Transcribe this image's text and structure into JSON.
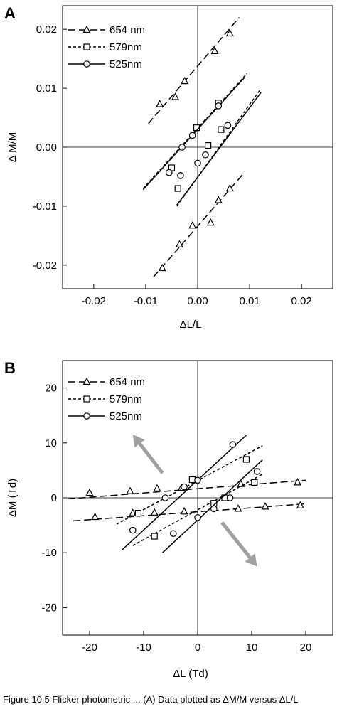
{
  "caption": "Figure 10.5 Flicker photometric ... (A) Data plotted as ΔM/M versus ΔL/L",
  "chart_data": [
    {
      "panel": "A",
      "type": "scatter",
      "title": "",
      "xlabel": "ΔL/L",
      "ylabel": "Δ M/M",
      "xlim": [
        -0.026,
        0.026
      ],
      "ylim": [
        -0.024,
        0.024
      ],
      "xticks": [
        -0.02,
        -0.01,
        0.0,
        0.01,
        0.02
      ],
      "xtick_labels": [
        "-0.02",
        "-0.01",
        "0.00",
        "0.01",
        "0.02"
      ],
      "yticks": [
        -0.02,
        -0.01,
        0.0,
        0.01,
        0.02
      ],
      "ytick_labels": [
        "-0.02",
        "-0.01",
        "0.00",
        "0.01",
        "0.02"
      ],
      "grid": false,
      "zero_lines": true,
      "legend_position": "top-left",
      "series": [
        {
          "name": "654 nm",
          "marker": "triangle",
          "dash": "10,5",
          "points": [
            [
              -0.0073,
              0.0073
            ],
            [
              -0.0043,
              0.0085
            ],
            [
              -0.0025,
              0.0112
            ],
            [
              0.0033,
              0.0163
            ],
            [
              0.0062,
              0.0193
            ],
            [
              -0.0068,
              -0.0205
            ],
            [
              -0.0035,
              -0.0165
            ],
            [
              -0.001,
              -0.0133
            ],
            [
              0.0025,
              -0.0128
            ],
            [
              0.004,
              -0.009
            ],
            [
              0.0062,
              -0.007
            ]
          ],
          "fits": [
            [
              [
                -0.0095,
                0.004
              ],
              [
                0.008,
                0.022
              ]
            ],
            [
              [
                -0.0085,
                -0.022
              ],
              [
                0.009,
                -0.0043
              ]
            ]
          ]
        },
        {
          "name": "579nm",
          "marker": "square",
          "dash": "4,3",
          "points": [
            [
              -0.005,
              -0.0035
            ],
            [
              -0.0038,
              -0.007
            ],
            [
              -0.0002,
              0.0033
            ],
            [
              0.002,
              0.0003
            ],
            [
              0.0045,
              0.003
            ],
            [
              0.004,
              0.0075
            ]
          ],
          "fits": [
            [
              [
                -0.0105,
                -0.007
              ],
              [
                0.0095,
                0.0125
              ]
            ],
            [
              [
                -0.004,
                -0.01
              ],
              [
                0.012,
                0.0097
              ]
            ]
          ]
        },
        {
          "name": "525nm",
          "marker": "circle",
          "dash": "",
          "points": [
            [
              -0.0055,
              -0.0043
            ],
            [
              -0.003,
              0.0
            ],
            [
              -0.0033,
              -0.0048
            ],
            [
              -0.001,
              0.002
            ],
            [
              0.0,
              -0.0027
            ],
            [
              0.0015,
              -0.0013
            ],
            [
              0.004,
              0.007
            ],
            [
              0.0058,
              0.0037
            ]
          ],
          "fits": [
            [
              [
                -0.0105,
                -0.0072
              ],
              [
                0.009,
                0.0118
              ]
            ],
            [
              [
                -0.004,
                -0.0098
              ],
              [
                0.0122,
                0.0093
              ]
            ]
          ]
        }
      ],
      "arrows": []
    },
    {
      "panel": "B",
      "type": "scatter",
      "title": "",
      "xlabel": "ΔL (Td)",
      "ylabel": "ΔM (Td)",
      "xlim": [
        -25,
        25
      ],
      "ylim": [
        -25,
        25
      ],
      "xticks": [
        -20,
        -10,
        0,
        10,
        20
      ],
      "xtick_labels": [
        "-20",
        "-10",
        "0",
        "10",
        "20"
      ],
      "yticks": [
        -20,
        -10,
        0,
        10,
        20
      ],
      "ytick_labels": [
        "-20",
        "-10",
        "0",
        "10",
        "20"
      ],
      "grid": false,
      "zero_lines": true,
      "legend_position": "top-left",
      "series": [
        {
          "name": "654 nm",
          "marker": "triangle",
          "dash": "10,5",
          "points": [
            [
              -20,
              0.9
            ],
            [
              -12.5,
              1.2
            ],
            [
              -7.5,
              1.7
            ],
            [
              -3,
              1.8
            ],
            [
              8,
              2.5
            ],
            [
              18.5,
              2.8
            ],
            [
              -19,
              -3.5
            ],
            [
              -12,
              -2.8
            ],
            [
              -8,
              -2.7
            ],
            [
              -2.5,
              -2.5
            ],
            [
              7.5,
              -2.0
            ],
            [
              12.5,
              -1.6
            ],
            [
              19,
              -1.4
            ]
          ],
          "fits": [
            [
              [
                -24,
                -0.2
              ],
              [
                20,
                3.2
              ]
            ],
            [
              [
                -23,
                -4.2
              ],
              [
                20,
                -1.1
              ]
            ]
          ]
        },
        {
          "name": "579nm",
          "marker": "square",
          "dash": "4,3",
          "points": [
            [
              -11,
              -2.8
            ],
            [
              -8,
              -7
            ],
            [
              -1,
              3.3
            ],
            [
              3,
              -1
            ],
            [
              5,
              0
            ],
            [
              9,
              7
            ],
            [
              10.5,
              2.8
            ]
          ],
          "fits": [
            [
              [
                -15,
                -4.8
              ],
              [
                12,
                9.5
              ]
            ],
            [
              [
                -12,
                -8.7
              ],
              [
                12,
                4.3
              ]
            ]
          ]
        },
        {
          "name": "525nm",
          "marker": "circle",
          "dash": "",
          "points": [
            [
              -12,
              -5.9
            ],
            [
              -4.5,
              -6.5
            ],
            [
              -6,
              0
            ],
            [
              -2.5,
              2
            ],
            [
              0,
              3.2
            ],
            [
              0,
              -3.6
            ],
            [
              3,
              -2
            ],
            [
              6.5,
              9.7
            ],
            [
              11,
              4.8
            ],
            [
              6,
              0
            ]
          ],
          "fits": [
            [
              [
                -14,
                -9.5
              ],
              [
                9,
                11.4
              ]
            ],
            [
              [
                -6.5,
                -10
              ],
              [
                12,
                6.9
              ]
            ]
          ]
        }
      ],
      "arrows": [
        {
          "from": [
            -6.5,
            4.5
          ],
          "to": [
            -12,
            11.5
          ]
        },
        {
          "from": [
            4.5,
            -4.5
          ],
          "to": [
            11,
            -12.5
          ]
        }
      ]
    }
  ]
}
